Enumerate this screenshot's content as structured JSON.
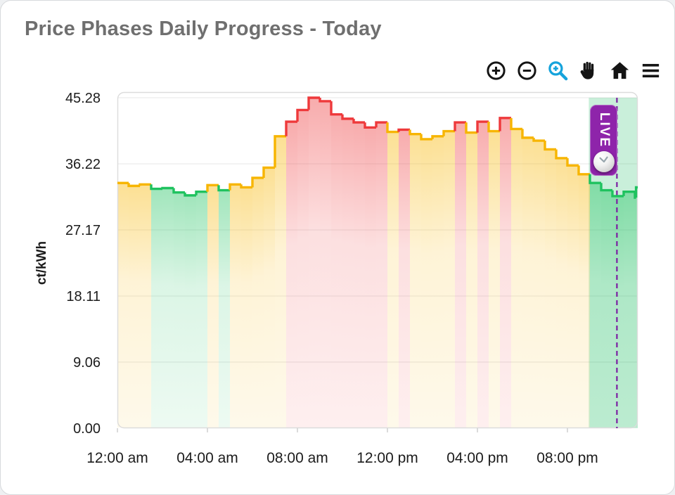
{
  "header": {
    "title": "Price Phases Daily Progress - Today"
  },
  "toolbar": {
    "icons": [
      "zoom-in",
      "zoom-out",
      "zoom-select",
      "pan",
      "home",
      "menu"
    ],
    "active_icon": "zoom-select",
    "active_color": "#15a3dc",
    "icon_color": "#141414"
  },
  "chart_data": {
    "type": "area",
    "subtype": "stepped-price-phases",
    "title": "Price Phases Daily Progress - Today",
    "xlabel": "",
    "ylabel": "ct/kWh",
    "ylim": [
      0,
      46.05
    ],
    "xlim_hours": [
      0,
      23.125
    ],
    "grid": "horizontal",
    "y_ticks": [
      {
        "v": 45.28,
        "label": "45.28"
      },
      {
        "v": 36.22,
        "label": "36.22"
      },
      {
        "v": 27.17,
        "label": "27.17"
      },
      {
        "v": 18.11,
        "label": "18.11"
      },
      {
        "v": 9.06,
        "label": "9.06"
      },
      {
        "v": 0.0,
        "label": "0.00"
      }
    ],
    "x_ticks": [
      {
        "h": 0,
        "label": "12:00 am"
      },
      {
        "h": 4,
        "label": "04:00 am"
      },
      {
        "h": 8,
        "label": "08:00 am"
      },
      {
        "h": 12,
        "label": "12:00 pm"
      },
      {
        "h": 16,
        "label": "04:00 pm"
      },
      {
        "h": 20,
        "label": "08:00 pm"
      }
    ],
    "phase_colors": {
      "green": "#1fc25f",
      "yellow": "#f7b500",
      "red": "#ee393b"
    },
    "live": {
      "label": "LIVE",
      "badge_color": "#8e24aa",
      "marker_color": "#7b1fa2",
      "marker_hour": 22.2,
      "region_start_hour": 20.95,
      "region_color": "rgba(30,190,100,0.24)"
    },
    "series_unit": "ct/kWh",
    "series_step_hours": 0.5,
    "series": [
      {
        "h": 0.0,
        "v": 33.6,
        "p": "yellow"
      },
      {
        "h": 0.5,
        "v": 33.2,
        "p": "yellow"
      },
      {
        "h": 1.0,
        "v": 33.4,
        "p": "yellow"
      },
      {
        "h": 1.5,
        "v": 32.8,
        "p": "green"
      },
      {
        "h": 2.0,
        "v": 32.9,
        "p": "green"
      },
      {
        "h": 2.5,
        "v": 32.3,
        "p": "green"
      },
      {
        "h": 3.0,
        "v": 31.9,
        "p": "green"
      },
      {
        "h": 3.5,
        "v": 32.4,
        "p": "green"
      },
      {
        "h": 4.0,
        "v": 33.3,
        "p": "yellow"
      },
      {
        "h": 4.5,
        "v": 32.6,
        "p": "green"
      },
      {
        "h": 5.0,
        "v": 33.4,
        "p": "yellow"
      },
      {
        "h": 5.5,
        "v": 33.0,
        "p": "yellow"
      },
      {
        "h": 6.0,
        "v": 34.3,
        "p": "yellow"
      },
      {
        "h": 6.5,
        "v": 35.7,
        "p": "yellow"
      },
      {
        "h": 7.0,
        "v": 40.0,
        "p": "yellow"
      },
      {
        "h": 7.5,
        "v": 42.0,
        "p": "red"
      },
      {
        "h": 8.0,
        "v": 43.6,
        "p": "red"
      },
      {
        "h": 8.5,
        "v": 45.28,
        "p": "red"
      },
      {
        "h": 9.0,
        "v": 44.8,
        "p": "red"
      },
      {
        "h": 9.5,
        "v": 43.0,
        "p": "red"
      },
      {
        "h": 10.0,
        "v": 42.4,
        "p": "red"
      },
      {
        "h": 10.5,
        "v": 41.9,
        "p": "red"
      },
      {
        "h": 11.0,
        "v": 41.2,
        "p": "red"
      },
      {
        "h": 11.5,
        "v": 41.9,
        "p": "red"
      },
      {
        "h": 12.0,
        "v": 40.6,
        "p": "yellow"
      },
      {
        "h": 12.5,
        "v": 40.9,
        "p": "red"
      },
      {
        "h": 13.0,
        "v": 40.3,
        "p": "yellow"
      },
      {
        "h": 13.5,
        "v": 39.6,
        "p": "yellow"
      },
      {
        "h": 14.0,
        "v": 40.0,
        "p": "yellow"
      },
      {
        "h": 14.5,
        "v": 40.7,
        "p": "yellow"
      },
      {
        "h": 15.0,
        "v": 41.9,
        "p": "red"
      },
      {
        "h": 15.5,
        "v": 40.5,
        "p": "yellow"
      },
      {
        "h": 16.0,
        "v": 42.0,
        "p": "red"
      },
      {
        "h": 16.5,
        "v": 40.7,
        "p": "yellow"
      },
      {
        "h": 17.0,
        "v": 42.5,
        "p": "red"
      },
      {
        "h": 17.5,
        "v": 41.0,
        "p": "yellow"
      },
      {
        "h": 18.0,
        "v": 39.8,
        "p": "yellow"
      },
      {
        "h": 18.5,
        "v": 39.4,
        "p": "yellow"
      },
      {
        "h": 19.0,
        "v": 38.2,
        "p": "yellow"
      },
      {
        "h": 19.5,
        "v": 37.0,
        "p": "yellow"
      },
      {
        "h": 20.0,
        "v": 36.0,
        "p": "yellow"
      },
      {
        "h": 20.5,
        "v": 34.8,
        "p": "yellow"
      },
      {
        "h": 21.0,
        "v": 33.6,
        "p": "green"
      },
      {
        "h": 21.5,
        "v": 32.6,
        "p": "green"
      },
      {
        "h": 22.0,
        "v": 31.8,
        "p": "green"
      },
      {
        "h": 22.5,
        "v": 32.4,
        "p": "green"
      },
      {
        "h": 23.0,
        "v": 31.6,
        "p": "green"
      },
      {
        "h": 23.05,
        "v": 33.0,
        "p": "green"
      }
    ]
  }
}
